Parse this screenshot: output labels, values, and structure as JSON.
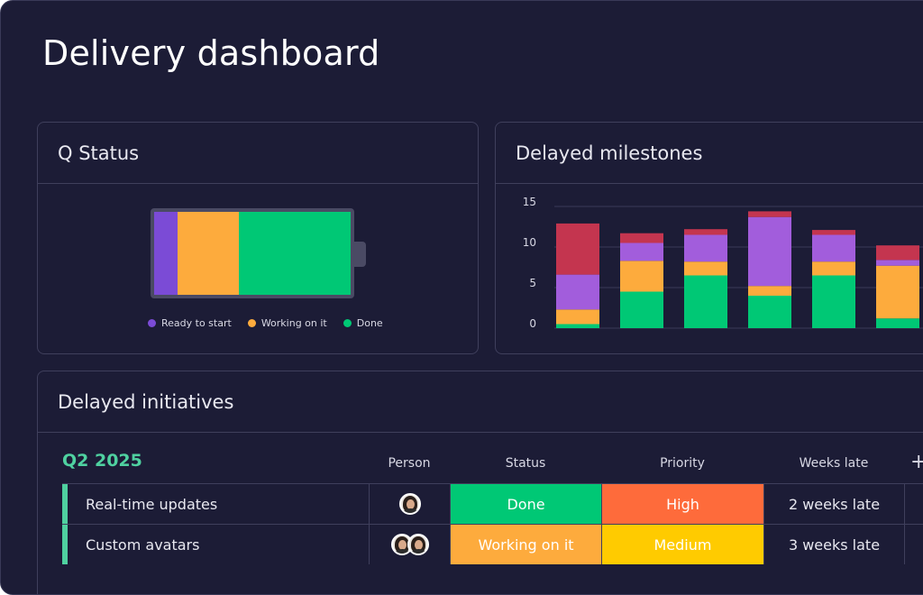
{
  "page": {
    "title": "Delivery dashboard"
  },
  "q_status": {
    "title": "Q Status",
    "segments": [
      {
        "name": "Ready to start",
        "fraction": 0.12,
        "color": "#7b4bd6"
      },
      {
        "name": "Working on it",
        "fraction": 0.31,
        "color": "#fdab3d"
      },
      {
        "name": "Done",
        "fraction": 0.57,
        "color": "#00c875"
      }
    ],
    "legend": [
      "Ready to start",
      "Working on it",
      "Done"
    ]
  },
  "milestones": {
    "title": "Delayed milestones"
  },
  "chart_data": {
    "type": "bar",
    "stacked": true,
    "yticks": [
      0,
      5,
      10,
      15
    ],
    "ylim": [
      0,
      15
    ],
    "grid": true,
    "series": [
      {
        "color": "#00c875",
        "values": [
          0.5,
          4.5,
          6.5,
          4,
          6.5,
          1.2
        ]
      },
      {
        "color": "#fdab3d",
        "values": [
          1.8,
          3.8,
          1.7,
          1.2,
          1.7,
          6.5
        ]
      },
      {
        "color": "#a25ddc",
        "values": [
          4.3,
          2.2,
          3.3,
          8.5,
          3.3,
          0.7
        ]
      },
      {
        "color": "#c4354f",
        "values": [
          6.3,
          1.2,
          0.7,
          0.7,
          0.6,
          1.8
        ]
      }
    ]
  },
  "initiatives": {
    "title": "Delayed initiatives",
    "group": "Q2 2025",
    "columns": [
      "Person",
      "Status",
      "Priority",
      "Weeks late"
    ],
    "add_label": "+",
    "rows": [
      {
        "name": "Real-time updates",
        "status": "Done",
        "status_color": "#00c875",
        "priority": "High",
        "priority_color": "#fe6b3b",
        "weeks_late": "2 weeks late",
        "avatars": 1
      },
      {
        "name": "Custom avatars",
        "status": "Working on it",
        "status_color": "#fdab3d",
        "priority": "Medium",
        "priority_color": "#ffcb00",
        "weeks_late": "3 weeks late",
        "avatars": 2
      }
    ]
  }
}
